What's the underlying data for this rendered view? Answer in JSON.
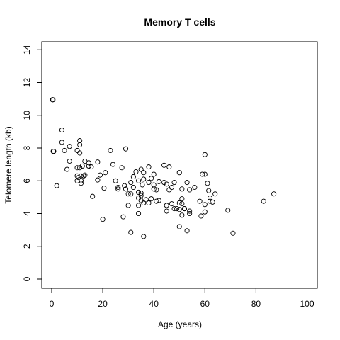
{
  "chart_data": {
    "type": "scatter",
    "title": "Memory T cells",
    "xlabel": "Age (years)",
    "ylabel": "Telomere length (kb)",
    "xlim": [
      0,
      100
    ],
    "ylim": [
      0,
      14
    ],
    "x_ticks": [
      0,
      20,
      40,
      60,
      80,
      100
    ],
    "y_ticks": [
      0,
      2,
      4,
      6,
      8,
      10,
      12,
      14
    ],
    "grid": false,
    "points": [
      [
        0.3,
        10.95
      ],
      [
        0.5,
        10.95
      ],
      [
        0.6,
        7.8
      ],
      [
        0.8,
        7.8
      ],
      [
        2,
        5.7
      ],
      [
        4,
        9.1
      ],
      [
        4,
        8.35
      ],
      [
        5,
        7.85
      ],
      [
        6,
        6.7
      ],
      [
        7,
        7.2
      ],
      [
        7,
        8.1
      ],
      [
        10,
        7.85
      ],
      [
        10,
        6.8
      ],
      [
        10,
        6.3
      ],
      [
        10,
        6.0
      ],
      [
        10.5,
        6.2
      ],
      [
        11,
        8.45
      ],
      [
        11,
        8.2
      ],
      [
        11,
        7.7
      ],
      [
        11,
        6.8
      ],
      [
        11.5,
        6.3
      ],
      [
        11.5,
        6.0
      ],
      [
        11.5,
        5.85
      ],
      [
        12,
        6.9
      ],
      [
        12.5,
        6.3
      ],
      [
        13,
        7.2
      ],
      [
        13,
        6.35
      ],
      [
        14.5,
        7.1
      ],
      [
        14.5,
        6.9
      ],
      [
        15.5,
        6.85
      ],
      [
        16,
        5.05
      ],
      [
        18,
        7.15
      ],
      [
        18,
        6.05
      ],
      [
        19,
        6.35
      ],
      [
        20,
        3.65
      ],
      [
        20.5,
        5.55
      ],
      [
        21,
        6.5
      ],
      [
        23,
        7.85
      ],
      [
        24,
        7.0
      ],
      [
        25,
        6.0
      ],
      [
        26,
        5.6
      ],
      [
        26,
        5.5
      ],
      [
        27.5,
        6.8
      ],
      [
        28,
        3.8
      ],
      [
        28.5,
        5.7
      ],
      [
        29,
        7.95
      ],
      [
        29,
        5.5
      ],
      [
        30,
        5.2
      ],
      [
        30,
        4.5
      ],
      [
        31,
        5.9
      ],
      [
        31,
        5.2
      ],
      [
        31,
        2.85
      ],
      [
        32,
        6.25
      ],
      [
        32,
        5.6
      ],
      [
        33,
        6.55
      ],
      [
        34,
        6.0
      ],
      [
        34,
        5.3
      ],
      [
        34,
        4.95
      ],
      [
        34,
        4.5
      ],
      [
        34,
        4.0
      ],
      [
        35,
        6.7
      ],
      [
        35,
        5.25
      ],
      [
        35,
        5.1
      ],
      [
        35,
        4.8
      ],
      [
        35.5,
        5.75
      ],
      [
        36,
        6.5
      ],
      [
        36,
        6.1
      ],
      [
        36,
        4.65
      ],
      [
        36,
        2.6
      ],
      [
        37,
        4.85
      ],
      [
        38,
        6.85
      ],
      [
        38,
        5.9
      ],
      [
        38,
        4.65
      ],
      [
        39,
        6.15
      ],
      [
        39,
        4.9
      ],
      [
        40,
        6.4
      ],
      [
        40,
        5.75
      ],
      [
        40,
        5.5
      ],
      [
        41,
        5.45
      ],
      [
        41,
        4.75
      ],
      [
        42,
        5.95
      ],
      [
        42,
        4.8
      ],
      [
        44,
        6.95
      ],
      [
        44,
        5.9
      ],
      [
        45,
        5.8
      ],
      [
        45,
        4.5
      ],
      [
        45,
        4.15
      ],
      [
        46,
        6.85
      ],
      [
        46,
        5.45
      ],
      [
        47,
        5.6
      ],
      [
        47,
        4.6
      ],
      [
        48,
        5.9
      ],
      [
        48,
        4.3
      ],
      [
        49,
        4.3
      ],
      [
        50,
        6.5
      ],
      [
        50,
        4.65
      ],
      [
        50,
        4.25
      ],
      [
        50,
        3.2
      ],
      [
        51,
        5.5
      ],
      [
        51,
        4.9
      ],
      [
        51,
        4.6
      ],
      [
        51,
        3.9
      ],
      [
        52,
        4.3
      ],
      [
        52,
        4.3
      ],
      [
        53,
        5.9
      ],
      [
        53,
        2.95
      ],
      [
        54,
        5.45
      ],
      [
        54,
        4.15
      ],
      [
        54,
        4.0
      ],
      [
        56,
        5.6
      ],
      [
        58,
        4.75
      ],
      [
        58.5,
        3.85
      ],
      [
        59,
        6.4
      ],
      [
        60,
        7.6
      ],
      [
        60,
        6.4
      ],
      [
        60,
        4.55
      ],
      [
        60,
        4.1
      ],
      [
        61,
        5.85
      ],
      [
        61.5,
        5.4
      ],
      [
        62,
        4.95
      ],
      [
        62,
        4.75
      ],
      [
        63,
        4.7
      ],
      [
        64,
        5.2
      ],
      [
        69,
        4.2
      ],
      [
        71,
        2.8
      ],
      [
        83,
        4.75
      ],
      [
        87,
        5.2
      ]
    ]
  }
}
